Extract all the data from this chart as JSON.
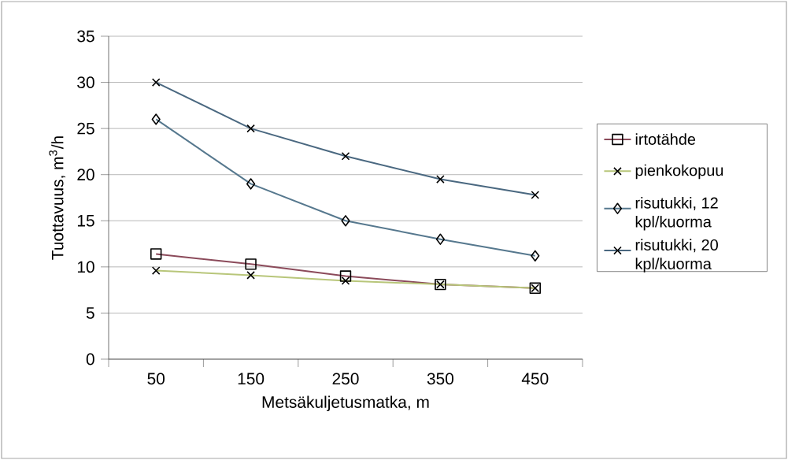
{
  "chart_data": {
    "type": "line",
    "xlabel": "Metsäkuljetusmatka, m",
    "ylabel": "Tuottavuus, m$^{3}$/h",
    "categories": [
      "50",
      "150",
      "250",
      "350",
      "450"
    ],
    "ylim": [
      0,
      35
    ],
    "yticks": [
      0,
      5,
      10,
      15,
      20,
      25,
      30,
      35
    ],
    "grid": "y",
    "legend": "right",
    "series": [
      {
        "name": "irtotähde",
        "color": "#8b4a5a",
        "marker": "square",
        "values": [
          11.4,
          10.3,
          9.0,
          8.1,
          7.7
        ]
      },
      {
        "name": "pienkokopuu",
        "color": "#b8c67a",
        "marker": "cross",
        "values": [
          9.6,
          9.1,
          8.5,
          8.1,
          7.7
        ]
      },
      {
        "name": "risutukki, 12 kpl/kuorma",
        "color": "#56788e",
        "marker": "diamond",
        "values": [
          26,
          19,
          15,
          13,
          11.2
        ]
      },
      {
        "name": "risutukki, 20 kpl/kuorma",
        "color": "#4a6880",
        "marker": "cross",
        "values": [
          30,
          25,
          22,
          19.5,
          17.8
        ]
      }
    ]
  }
}
